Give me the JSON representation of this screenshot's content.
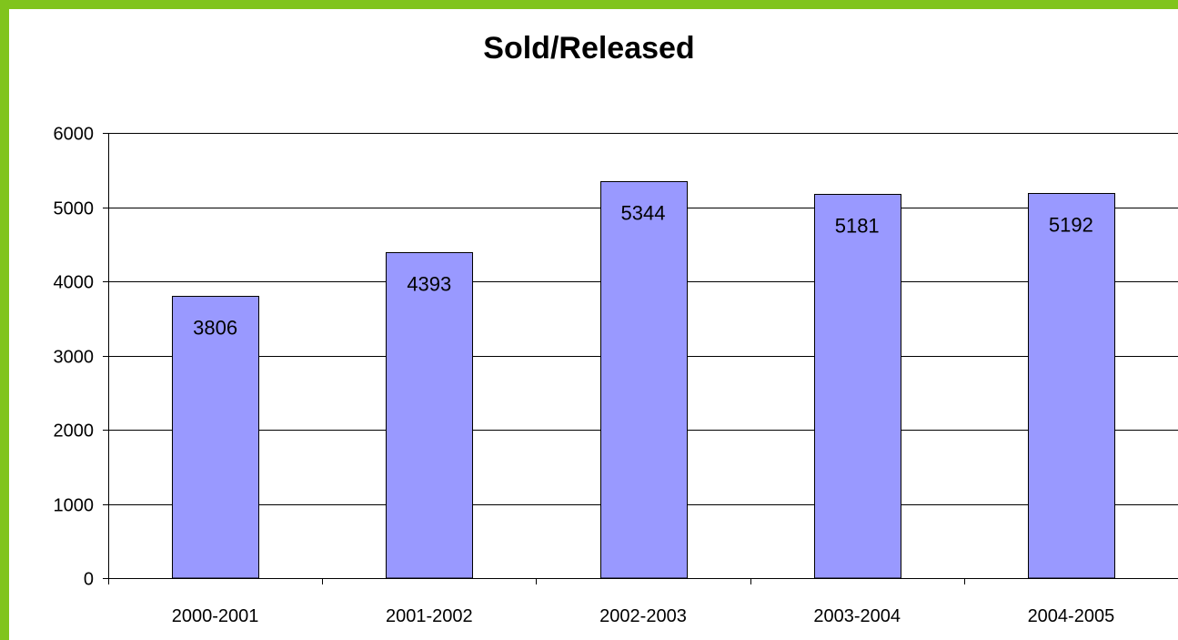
{
  "colors": {
    "frame_border": "#80c41c",
    "bar_fill": "#9999ff",
    "bar_stroke": "#000000",
    "gridline": "#000000",
    "background": "#ffffff"
  },
  "chart_data": {
    "type": "bar",
    "title": "Sold/Released",
    "xlabel": "",
    "ylabel": "",
    "categories": [
      "2000-2001",
      "2001-2002",
      "2002-2003",
      "2003-2004",
      "2004-2005"
    ],
    "values": [
      3806,
      4393,
      5344,
      5181,
      5192
    ],
    "data_labels": [
      "3806",
      "4393",
      "5344",
      "5181",
      "5192"
    ],
    "ylim": [
      0,
      6000
    ],
    "yticks": [
      0,
      1000,
      2000,
      3000,
      4000,
      5000,
      6000
    ],
    "ytick_labels": [
      "0",
      "1000",
      "2000",
      "3000",
      "4000",
      "5000",
      "6000"
    ],
    "grid": true,
    "legend": "none"
  }
}
